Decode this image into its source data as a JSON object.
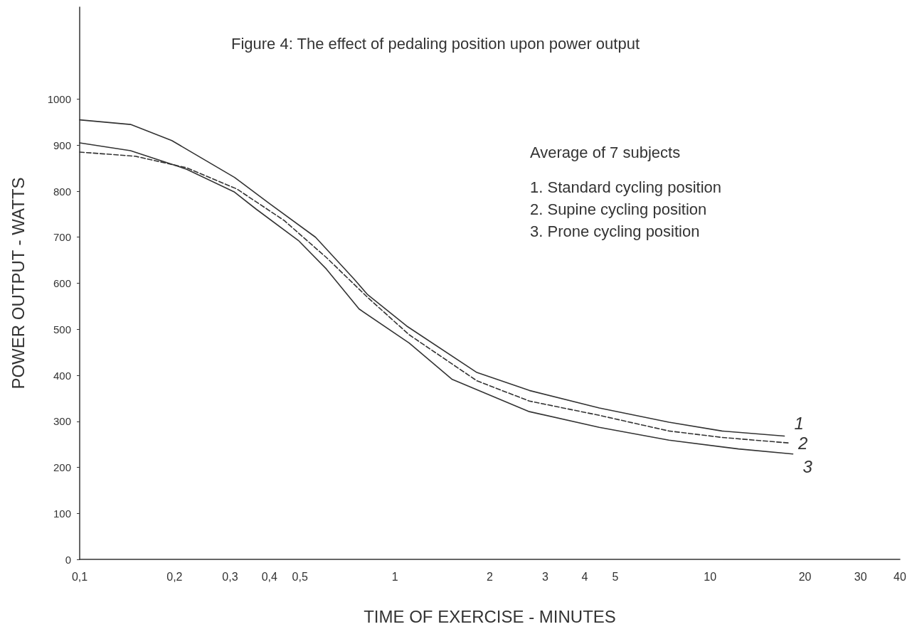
{
  "chart_data": {
    "type": "line",
    "title": "Figure 4: The effect of pedaling position upon power output",
    "xlabel": "TIME OF EXERCISE - MINUTES",
    "ylabel": "POWER OUTPUT - WATTS",
    "annotations": [
      "Average of 7 subjects",
      "1. Standard cycling position",
      "2. Supine cycling position",
      "3. Prone cycling position"
    ],
    "log": "x",
    "grid": false,
    "marker": "none",
    "xlim": [
      0.1,
      40
    ],
    "xticks": [
      {
        "value": 0.1,
        "label": "0,1"
      },
      {
        "value": 0.2,
        "label": "0,2"
      },
      {
        "value": 0.3,
        "label": "0,3"
      },
      {
        "value": 0.4,
        "label": "0,4"
      },
      {
        "value": 0.5,
        "label": "0,5"
      },
      1,
      2,
      3,
      4,
      5,
      10,
      20,
      30,
      40
    ],
    "ylim": [
      0,
      1200
    ],
    "yticks": [
      0,
      100,
      200,
      300,
      400,
      500,
      600,
      700,
      800,
      900,
      1000
    ],
    "series": [
      {
        "name": "1",
        "color": "#333333",
        "line_style": "solid",
        "x": [
          0.1,
          0.145,
          0.196,
          0.31,
          0.4,
          0.56,
          0.74,
          0.82,
          1.09,
          1.82,
          2.67,
          4.45,
          7.4,
          10.9,
          17.2
        ],
        "values": [
          955,
          945,
          910,
          830,
          773,
          700,
          610,
          575,
          507,
          406,
          367,
          329,
          298,
          279,
          268
        ]
      },
      {
        "name": "2",
        "color": "#333333",
        "line_style": "dashed",
        "x": [
          0.1,
          0.15,
          0.218,
          0.315,
          0.446,
          0.606,
          0.82,
          1.11,
          1.82,
          2.67,
          4.45,
          7.4,
          10.9,
          17.7
        ],
        "values": [
          885,
          876,
          851,
          805,
          736,
          656,
          569,
          488,
          388,
          344,
          313,
          279,
          265,
          253
        ]
      },
      {
        "name": "3",
        "color": "#333333",
        "line_style": "solid",
        "x": [
          0.1,
          0.145,
          0.218,
          0.31,
          0.363,
          0.494,
          0.606,
          0.77,
          1.11,
          1.52,
          2.67,
          4.45,
          7.4,
          12.3,
          18.3
        ],
        "values": [
          905,
          888,
          848,
          798,
          761,
          693,
          631,
          544,
          470,
          391,
          321,
          287,
          259,
          240,
          229
        ]
      }
    ]
  }
}
